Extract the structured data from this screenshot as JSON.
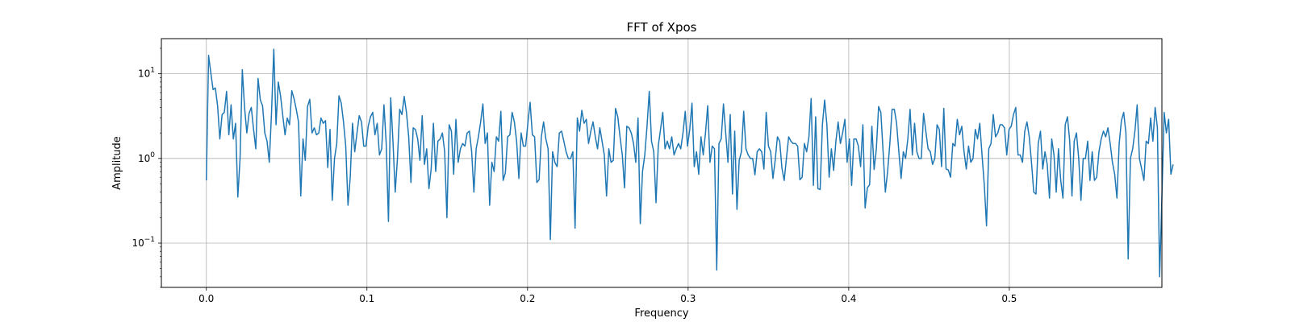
{
  "chart_data": {
    "type": "line",
    "title": "FFT of Xpos",
    "xlabel": "Frequency",
    "ylabel": "Amplitude",
    "yscale": "log",
    "xlim": [
      -0.028,
      0.595
    ],
    "ylim": [
      0.03,
      26
    ],
    "grid": true,
    "line_color": "#1f77b4",
    "xticks": [
      {
        "value": 0.0,
        "label": "0.0"
      },
      {
        "value": 0.1,
        "label": "0.1"
      },
      {
        "value": 0.2,
        "label": "0.2"
      },
      {
        "value": 0.3,
        "label": "0.3"
      },
      {
        "value": 0.4,
        "label": "0.4"
      },
      {
        "value": 0.5,
        "label": "0.5"
      }
    ],
    "yticks": [
      {
        "value": 10,
        "base": "10",
        "exp": "1"
      },
      {
        "value": 1,
        "base": "10",
        "exp": "0"
      },
      {
        "value": 0.1,
        "base": "10",
        "exp": "−1"
      }
    ],
    "series": [
      {
        "x_start": 0.0,
        "x_step": 0.0014,
        "values": [
          0.55,
          16.5,
          10.2,
          6.5,
          6.8,
          4.2,
          1.7,
          3.3,
          3.5,
          6.2,
          1.9,
          4.3,
          1.7,
          2.6,
          0.35,
          1.0,
          11.2,
          4.0,
          2.0,
          3.4,
          4.0,
          2.2,
          1.3,
          8.8,
          4.9,
          4.2,
          2.0,
          1.6,
          0.9,
          3.5,
          19.5,
          2.5,
          8.0,
          5.5,
          3.2,
          1.9,
          3.0,
          2.5,
          6.3,
          5.1,
          3.8,
          2.7,
          0.36,
          1.7,
          0.95,
          4.1,
          5.0,
          2.0,
          2.3,
          1.9,
          2.0,
          3.0,
          2.6,
          2.8,
          0.78,
          2.2,
          0.32,
          1.0,
          1.5,
          5.5,
          4.5,
          2.7,
          1.4,
          0.28,
          0.6,
          2.6,
          1.2,
          2.0,
          3.2,
          2.7,
          1.4,
          1.4,
          2.4,
          3.1,
          3.5,
          1.9,
          2.6,
          1.1,
          1.3,
          4.3,
          1.5,
          0.18,
          5.2,
          1.6,
          0.4,
          1.0,
          3.8,
          3.3,
          5.4,
          3.5,
          1.8,
          0.52,
          2.3,
          2.2,
          1.7,
          0.95,
          3.2,
          0.85,
          1.3,
          0.44,
          0.75,
          2.6,
          0.7,
          1.6,
          1.7,
          2.0,
          1.2,
          0.2,
          2.5,
          2.1,
          0.65,
          2.9,
          0.9,
          1.3,
          1.5,
          1.4,
          2.0,
          2.1,
          1.2,
          0.4,
          1.3,
          1.8,
          2.7,
          4.4,
          1.5,
          2.0,
          0.28,
          0.9,
          0.7,
          1.8,
          1.6,
          3.6,
          0.55,
          0.68,
          1.8,
          1.9,
          3.5,
          2.7,
          1.6,
          0.58,
          2.0,
          1.4,
          1.4,
          2.6,
          4.6,
          1.9,
          1.8,
          0.52,
          0.56,
          1.8,
          2.7,
          1.7,
          1.3,
          0.11,
          1.2,
          0.9,
          0.8,
          2.0,
          2.1,
          1.6,
          1.2,
          1.0,
          1.0,
          1.2,
          0.15,
          3.0,
          2.1,
          3.7,
          2.6,
          2.9,
          1.5,
          2.1,
          2.7,
          1.8,
          1.3,
          2.3,
          1.6,
          1.1,
          0.36,
          1.3,
          0.9,
          0.95,
          3.9,
          3.1,
          1.8,
          1.1,
          0.45,
          2.4,
          2.3,
          2.0,
          1.5,
          0.9,
          3.0,
          0.17,
          0.7,
          1.1,
          2.4,
          6.2,
          1.6,
          1.2,
          0.3,
          1.4,
          2.2,
          3.5,
          1.3,
          1.6,
          1.3,
          1.8,
          1.1,
          1.3,
          1.5,
          1.3,
          2.0,
          3.6,
          1.4,
          2.2,
          4.5,
          0.8,
          1.2,
          0.65,
          1.8,
          1.1,
          2.0,
          4.2,
          0.9,
          1.4,
          1.3,
          0.048,
          1.5,
          1.7,
          4.4,
          2.0,
          0.9,
          3.3,
          0.38,
          2.1,
          0.25,
          0.95,
          1.2,
          3.6,
          1.3,
          1.1,
          1.0,
          1.0,
          0.64,
          1.2,
          1.3,
          1.2,
          0.75,
          3.5,
          1.4,
          1.2,
          0.58,
          0.95,
          1.8,
          1.6,
          0.77,
          0.55,
          1.0,
          1.8,
          1.6,
          1.5,
          1.5,
          1.4,
          0.56,
          0.6,
          1.5,
          1.2,
          1.8,
          5.1,
          0.48,
          3.1,
          0.44,
          0.43,
          2.5,
          4.9,
          2.5,
          0.6,
          1.3,
          0.72,
          1.6,
          2.7,
          1.5,
          2.0,
          2.9,
          0.9,
          1.7,
          0.48,
          1.7,
          1.7,
          1.4,
          0.8,
          2.5,
          0.26,
          0.45,
          0.49,
          2.4,
          0.74,
          1.3,
          4.1,
          3.5,
          1.2,
          0.4,
          0.7,
          1.5,
          3.8,
          3.8,
          2.6,
          1.2,
          0.58,
          1.2,
          1.0,
          1.7,
          3.8,
          1.1,
          2.6,
          1.2,
          1.0,
          1.0,
          3.4,
          2.1,
          1.3,
          1.2,
          0.85,
          1.0,
          2.5,
          2.2,
          0.8,
          3.9,
          0.75,
          0.73,
          0.6,
          1.5,
          1.4,
          2.9,
          1.9,
          2.4,
          1.2,
          0.75,
          1.4,
          0.9,
          1.0,
          2.2,
          1.7,
          2.6,
          1.1,
          0.49,
          0.16,
          1.3,
          1.5,
          3.3,
          1.8,
          2.0,
          2.5,
          2.5,
          2.3,
          1.1,
          2.2,
          2.4,
          3.3,
          4.0,
          1.1,
          1.1,
          0.9,
          2.1,
          2.7,
          1.8,
          0.9,
          0.4,
          0.38,
          1.5,
          2.1,
          0.75,
          1.2,
          0.85,
          0.34,
          1.7,
          1.1,
          0.4,
          1.3,
          0.55,
          0.34,
          2.5,
          3.1,
          1.6,
          0.36,
          1.6,
          2.0,
          1.0,
          0.32,
          1.0,
          1.0,
          1.6,
          0.55,
          1.2,
          0.55,
          0.6,
          1.2,
          1.7,
          2.1,
          1.8,
          2.3,
          1.5,
          0.9,
          0.65,
          0.34,
          1.5,
          2.8,
          3.5,
          2.0,
          0.065,
          1.0,
          1.3,
          2.1,
          4.3,
          1.0,
          0.75,
          0.55,
          1.6,
          1.5,
          3.0,
          1.6,
          4.0,
          2.3,
          0.04,
          0.35,
          3.5,
          2.0,
          2.9,
          0.65,
          0.85
        ]
      }
    ]
  }
}
